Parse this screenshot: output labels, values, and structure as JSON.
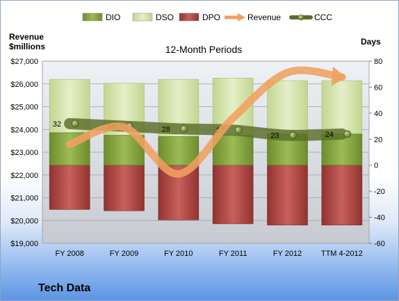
{
  "chart_data": {
    "type": "bar",
    "title": "12-Month Periods",
    "categories": [
      "FY 2008",
      "FY 2009",
      "FY 2010",
      "FY 2011",
      "FY 2012",
      "TTM 4-2012"
    ],
    "y_left": {
      "label_line1": "Revenue",
      "label_line2": "$millions",
      "ylim": [
        19000,
        27000
      ],
      "ticks": [
        19000,
        20000,
        21000,
        22000,
        23000,
        24000,
        25000,
        26000,
        27000
      ],
      "tick_labels": [
        "$19,000",
        "$20,000",
        "$21,000",
        "$22,000",
        "$23,000",
        "$24,000",
        "$25,000",
        "$26,000",
        "$27,000"
      ]
    },
    "y_right": {
      "label": "Days",
      "ylim": [
        -60,
        80
      ],
      "ticks": [
        -60,
        -40,
        -20,
        0,
        20,
        40,
        60,
        80
      ]
    },
    "series": [
      {
        "name": "DIO",
        "kind": "stacked-bar",
        "axis": "right",
        "color": "#7e9c3a",
        "values": [
          25,
          23,
          22,
          23,
          24,
          24
        ]
      },
      {
        "name": "DSO",
        "kind": "stacked-bar",
        "axis": "right",
        "color": "#d3e3a8",
        "values": [
          41,
          40,
          44,
          44,
          41,
          41
        ]
      },
      {
        "name": "DPO",
        "kind": "negative-bar",
        "axis": "right",
        "color": "#a9403e",
        "values": [
          -34,
          -35,
          -42,
          -45,
          -46,
          -46
        ]
      },
      {
        "name": "Revenue",
        "kind": "line",
        "axis": "left",
        "color": "#f0a060",
        "values": [
          23350,
          24100,
          22050,
          24500,
          26500,
          26300
        ]
      },
      {
        "name": "CCC",
        "kind": "line",
        "axis": "right",
        "color": "#5a6e2a",
        "values": [
          32,
          30,
          28,
          27,
          23,
          24
        ],
        "labels": [
          "32",
          "30",
          "28",
          "27",
          "23",
          "24"
        ]
      }
    ],
    "legend": {
      "position": "top",
      "items": [
        {
          "name": "DIO",
          "symbol": "bar",
          "color": "#7e9c3a"
        },
        {
          "name": "DSO",
          "symbol": "bar",
          "color": "#d3e3a8"
        },
        {
          "name": "DPO",
          "symbol": "bar",
          "color": "#a9403e"
        },
        {
          "name": "Revenue",
          "symbol": "arrow",
          "color": "#f0a060"
        },
        {
          "name": "CCC",
          "symbol": "line-dot",
          "color": "#5a6e2a"
        }
      ]
    },
    "grid": true
  },
  "company": "Tech Data"
}
